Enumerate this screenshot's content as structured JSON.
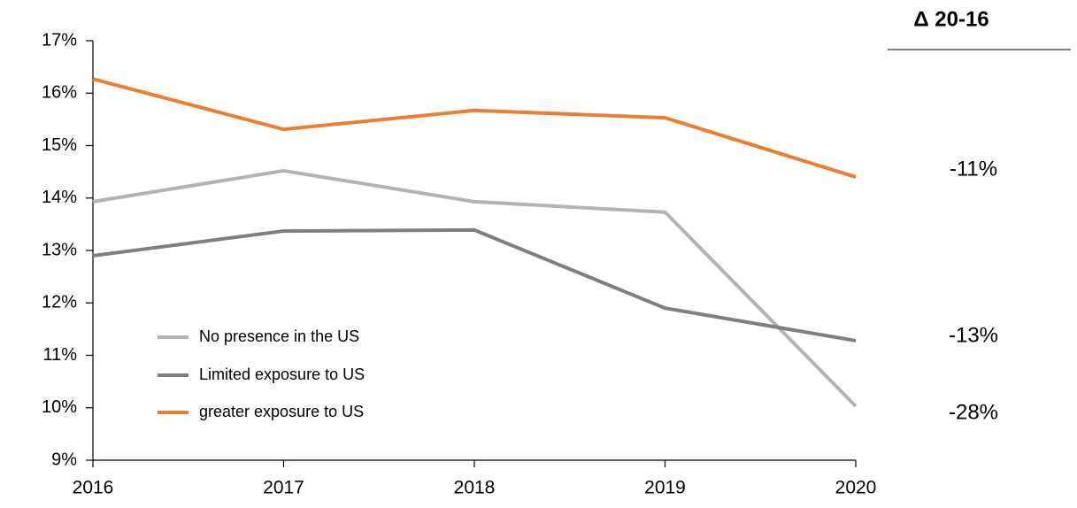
{
  "chart_data": {
    "type": "line",
    "categories": [
      "2016",
      "2017",
      "2018",
      "2019",
      "2020"
    ],
    "series": [
      {
        "name": "No presence in the US",
        "color": "#b3b3b3",
        "values": [
          13.93,
          14.52,
          13.93,
          13.73,
          10.03
        ]
      },
      {
        "name": "Limited exposure to US",
        "color": "#7f7f7f",
        "values": [
          12.9,
          13.37,
          13.39,
          11.9,
          11.28
        ]
      },
      {
        "name": "greater exposure to US",
        "color": "#ed7d31",
        "values": [
          16.27,
          15.31,
          15.67,
          15.53,
          14.4
        ]
      }
    ],
    "ylim": [
      9,
      17
    ],
    "yticks": [
      {
        "value": 9,
        "label": "9%"
      },
      {
        "value": 10,
        "label": "10%"
      },
      {
        "value": 11,
        "label": "11%"
      },
      {
        "value": 12,
        "label": "12%"
      },
      {
        "value": 13,
        "label": "13%"
      },
      {
        "value": 14,
        "label": "14%"
      },
      {
        "value": 15,
        "label": "15%"
      },
      {
        "value": 16,
        "label": "16%"
      },
      {
        "value": 17,
        "label": "17%"
      }
    ],
    "legend": "lower left",
    "annotations_header": "Δ 20-16",
    "annotations": [
      {
        "series": 2,
        "text": "-11%"
      },
      {
        "series": 1,
        "text": "-13%"
      },
      {
        "series": 0,
        "text": "-28%"
      }
    ]
  }
}
